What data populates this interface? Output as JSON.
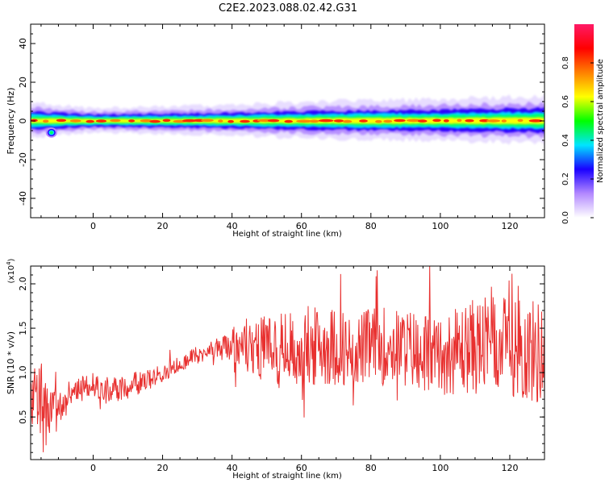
{
  "title": "C2E2.2023.088.02.42.G31",
  "chart_data": [
    {
      "type": "heatmap",
      "name": "spectrogram",
      "ylabel": "Frequency (Hz)",
      "xlabel": "Height of straight line (km)",
      "xlim": [
        -18,
        130
      ],
      "ylim": [
        -50,
        50
      ],
      "xticks": [
        0,
        20,
        40,
        60,
        80,
        100,
        120
      ],
      "yticks": [
        -40,
        -20,
        0,
        20,
        40
      ],
      "xtick_labels": [
        "0",
        "20",
        "40",
        "60",
        "80",
        "100",
        "120"
      ],
      "ytick_labels": [
        "-40",
        "-20",
        "0",
        "20",
        "40"
      ],
      "colorbar": {
        "label": "Normalized spectral amplitude",
        "range": [
          0,
          1
        ],
        "ticks": [
          0.0,
          0.2,
          0.4,
          0.6,
          0.8
        ],
        "tick_labels": [
          "0.0",
          "0.2",
          "0.4",
          "0.6",
          "0.8"
        ],
        "colors": [
          "#ffffff",
          "#b388ff",
          "#1a00ff",
          "#00e5ff",
          "#00ff00",
          "#ffff00",
          "#ff8000",
          "#ff0000",
          "#ff1a66"
        ]
      },
      "band": {
        "center_hz": 0,
        "halfwidth_hz": [
          [
            -18,
            3
          ],
          [
            0,
            2
          ],
          [
            40,
            2.5
          ],
          [
            60,
            3
          ],
          [
            100,
            3.5
          ],
          [
            130,
            4
          ]
        ],
        "isolated_blob": {
          "x": -12,
          "y": -6
        }
      }
    },
    {
      "type": "line",
      "name": "snr",
      "ylabel": "SNR (10 * v/v)",
      "yscale_label": "(x10",
      "yscale_exp": "4",
      "yscale_close": ")",
      "xlabel": "Height of straight line (km)",
      "xlim": [
        -18,
        130
      ],
      "ylim": [
        0.02,
        2.2
      ],
      "xticks": [
        0,
        20,
        40,
        60,
        80,
        100,
        120
      ],
      "yticks": [
        0.5,
        1.0,
        1.5,
        2.0
      ],
      "xtick_labels": [
        "0",
        "20",
        "40",
        "60",
        "80",
        "100",
        "120"
      ],
      "ytick_labels": [
        "0.5",
        "1.0",
        "1.5",
        "2.0"
      ],
      "color": "#e8302f",
      "envelope": {
        "x": [
          -18,
          -15,
          -13,
          -11,
          -8,
          -3,
          0,
          5,
          10,
          15,
          20,
          25,
          30,
          35,
          40,
          45,
          50,
          55,
          60,
          65,
          70,
          75,
          80,
          85,
          90,
          95,
          100,
          105,
          110,
          115,
          120,
          125,
          130
        ],
        "mean": [
          0.7,
          0.75,
          0.45,
          0.55,
          0.75,
          0.85,
          0.85,
          0.8,
          0.85,
          0.9,
          1.0,
          1.1,
          1.2,
          1.28,
          1.3,
          1.3,
          1.28,
          1.25,
          1.25,
          1.3,
          1.3,
          1.25,
          1.3,
          1.3,
          1.28,
          1.25,
          1.2,
          1.25,
          1.3,
          1.3,
          1.3,
          1.25,
          1.2
        ],
        "amplitude": [
          0.3,
          0.45,
          0.35,
          0.3,
          0.15,
          0.12,
          0.12,
          0.15,
          0.15,
          0.12,
          0.1,
          0.1,
          0.1,
          0.12,
          0.2,
          0.35,
          0.4,
          0.45,
          0.45,
          0.45,
          0.45,
          0.4,
          0.45,
          0.45,
          0.45,
          0.45,
          0.45,
          0.5,
          0.55,
          0.55,
          0.55,
          0.6,
          0.6
        ]
      }
    }
  ]
}
